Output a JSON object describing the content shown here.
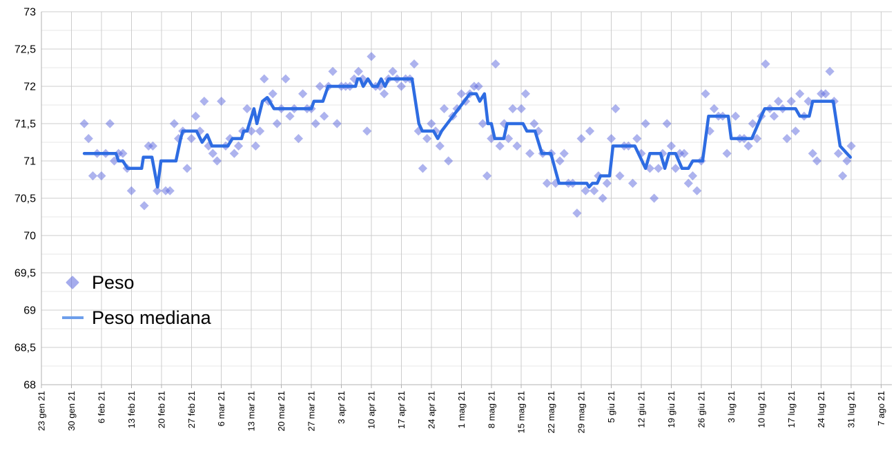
{
  "chart_data": {
    "type": "scatter",
    "title": "",
    "grid": true,
    "x_axis": {
      "tick_unit": "weeks",
      "days_per_tick": 7,
      "tick_labels": [
        "23 gen 21",
        "30 gen 21",
        "6 feb 21",
        "13 feb 21",
        "20 feb 21",
        "27 feb 21",
        "6 mar 21",
        "13 mar 21",
        "20 mar 21",
        "27 mar 21",
        "3 apr 21",
        "10 apr 21",
        "17 apr 21",
        "24 apr 21",
        "1 mag 21",
        "8 mag 21",
        "15 mag 21",
        "22 mag 21",
        "29 mag 21",
        "5 giu 21",
        "12 giu 21",
        "19 giu 21",
        "26 giu 21",
        "3 lug 21",
        "10 lug 21",
        "17 lug 21",
        "24 lug 21",
        "31 lug 21",
        "7 ago 21"
      ]
    },
    "y_axis": {
      "min": 68,
      "max": 73,
      "major_step": 0.5,
      "minor_step": 0.25,
      "tick_labels": [
        "73",
        "72,5",
        "72",
        "71,5",
        "71",
        "70,5",
        "70",
        "69,5",
        "69",
        "68,5",
        "68"
      ]
    },
    "legend": {
      "position": "inside-middle-left",
      "entries": [
        "Peso",
        "Peso mediana"
      ]
    },
    "series": [
      {
        "name": "Peso",
        "type": "scatter",
        "marker": "diamond",
        "color": "#5b68de",
        "opacity": 0.5,
        "x_unit": "days since 23 gen 21",
        "points": [
          [
            10,
            71.5
          ],
          [
            11,
            71.3
          ],
          [
            12,
            70.8
          ],
          [
            13,
            71.1
          ],
          [
            14,
            70.8
          ],
          [
            15,
            71.1
          ],
          [
            16,
            71.5
          ],
          [
            17,
            71.0
          ],
          [
            18,
            71.1
          ],
          [
            19,
            71.1
          ],
          [
            20,
            70.9
          ],
          [
            21,
            70.6
          ],
          [
            24,
            70.4
          ],
          [
            25,
            71.2
          ],
          [
            26,
            71.2
          ],
          [
            27,
            70.6
          ],
          [
            29,
            70.6
          ],
          [
            30,
            70.6
          ],
          [
            31,
            71.5
          ],
          [
            32,
            71.3
          ],
          [
            33,
            71.4
          ],
          [
            34,
            70.9
          ],
          [
            35,
            71.3
          ],
          [
            36,
            71.6
          ],
          [
            37,
            71.4
          ],
          [
            38,
            71.8
          ],
          [
            39,
            71.2
          ],
          [
            40,
            71.1
          ],
          [
            41,
            71.0
          ],
          [
            42,
            71.8
          ],
          [
            43,
            71.2
          ],
          [
            44,
            71.3
          ],
          [
            45,
            71.1
          ],
          [
            46,
            71.2
          ],
          [
            47,
            71.4
          ],
          [
            48,
            71.7
          ],
          [
            49,
            71.4
          ],
          [
            50,
            71.2
          ],
          [
            51,
            71.4
          ],
          [
            52,
            72.1
          ],
          [
            53,
            71.8
          ],
          [
            54,
            71.9
          ],
          [
            55,
            71.5
          ],
          [
            56,
            71.7
          ],
          [
            57,
            72.1
          ],
          [
            58,
            71.6
          ],
          [
            59,
            71.7
          ],
          [
            60,
            71.3
          ],
          [
            61,
            71.9
          ],
          [
            62,
            71.7
          ],
          [
            63,
            71.7
          ],
          [
            64,
            71.5
          ],
          [
            65,
            72.0
          ],
          [
            66,
            71.6
          ],
          [
            67,
            72.0
          ],
          [
            68,
            72.2
          ],
          [
            69,
            71.5
          ],
          [
            70,
            72.0
          ],
          [
            71,
            72.0
          ],
          [
            72,
            72.0
          ],
          [
            73,
            72.1
          ],
          [
            74,
            72.2
          ],
          [
            75,
            72.1
          ],
          [
            76,
            71.4
          ],
          [
            77,
            72.4
          ],
          [
            78,
            72.0
          ],
          [
            79,
            72.0
          ],
          [
            80,
            71.9
          ],
          [
            81,
            72.1
          ],
          [
            82,
            72.2
          ],
          [
            83,
            72.1
          ],
          [
            84,
            72.0
          ],
          [
            85,
            72.1
          ],
          [
            86,
            72.1
          ],
          [
            87,
            72.3
          ],
          [
            88,
            71.4
          ],
          [
            89,
            70.9
          ],
          [
            90,
            71.3
          ],
          [
            91,
            71.5
          ],
          [
            92,
            71.4
          ],
          [
            93,
            71.2
          ],
          [
            94,
            71.7
          ],
          [
            95,
            71.0
          ],
          [
            96,
            71.6
          ],
          [
            97,
            71.7
          ],
          [
            98,
            71.9
          ],
          [
            99,
            71.8
          ],
          [
            100,
            71.9
          ],
          [
            101,
            72.0
          ],
          [
            102,
            72.0
          ],
          [
            103,
            71.5
          ],
          [
            104,
            70.8
          ],
          [
            105,
            71.3
          ],
          [
            106,
            72.3
          ],
          [
            107,
            71.2
          ],
          [
            108,
            71.5
          ],
          [
            109,
            71.3
          ],
          [
            110,
            71.7
          ],
          [
            111,
            71.2
          ],
          [
            112,
            71.7
          ],
          [
            113,
            71.9
          ],
          [
            114,
            71.1
          ],
          [
            115,
            71.5
          ],
          [
            116,
            71.4
          ],
          [
            117,
            71.1
          ],
          [
            118,
            70.7
          ],
          [
            119,
            71.1
          ],
          [
            120,
            70.7
          ],
          [
            121,
            71.0
          ],
          [
            122,
            71.1
          ],
          [
            123,
            70.7
          ],
          [
            124,
            70.7
          ],
          [
            125,
            70.3
          ],
          [
            126,
            71.3
          ],
          [
            127,
            70.6
          ],
          [
            128,
            71.4
          ],
          [
            129,
            70.6
          ],
          [
            130,
            70.8
          ],
          [
            131,
            70.5
          ],
          [
            132,
            70.7
          ],
          [
            133,
            71.3
          ],
          [
            134,
            71.7
          ],
          [
            135,
            70.8
          ],
          [
            136,
            71.2
          ],
          [
            137,
            71.2
          ],
          [
            138,
            70.7
          ],
          [
            139,
            71.3
          ],
          [
            140,
            71.1
          ],
          [
            141,
            71.5
          ],
          [
            142,
            70.9
          ],
          [
            143,
            70.5
          ],
          [
            144,
            70.9
          ],
          [
            145,
            71.1
          ],
          [
            146,
            71.5
          ],
          [
            147,
            71.2
          ],
          [
            148,
            70.9
          ],
          [
            149,
            71.1
          ],
          [
            150,
            71.1
          ],
          [
            151,
            70.7
          ],
          [
            152,
            70.8
          ],
          [
            153,
            70.6
          ],
          [
            154,
            71.0
          ],
          [
            155,
            71.9
          ],
          [
            156,
            71.4
          ],
          [
            157,
            71.7
          ],
          [
            158,
            71.6
          ],
          [
            159,
            71.6
          ],
          [
            160,
            71.1
          ],
          [
            162,
            71.6
          ],
          [
            163,
            71.3
          ],
          [
            164,
            71.3
          ],
          [
            165,
            71.2
          ],
          [
            166,
            71.5
          ],
          [
            167,
            71.3
          ],
          [
            168,
            71.6
          ],
          [
            169,
            72.3
          ],
          [
            170,
            71.7
          ],
          [
            171,
            71.6
          ],
          [
            172,
            71.8
          ],
          [
            173,
            71.7
          ],
          [
            174,
            71.3
          ],
          [
            175,
            71.8
          ],
          [
            176,
            71.4
          ],
          [
            177,
            71.9
          ],
          [
            178,
            71.6
          ],
          [
            179,
            71.8
          ],
          [
            180,
            71.1
          ],
          [
            181,
            71.0
          ],
          [
            182,
            71.9
          ],
          [
            183,
            71.9
          ],
          [
            184,
            72.2
          ],
          [
            185,
            71.8
          ],
          [
            186,
            71.1
          ],
          [
            187,
            70.8
          ],
          [
            188,
            71.0
          ],
          [
            189,
            71.2
          ]
        ]
      },
      {
        "name": "Peso mediana",
        "type": "line",
        "color": "#2e6ce2",
        "width": 4.5,
        "x_unit": "days since 23 gen 21",
        "points": [
          [
            10,
            71.1
          ],
          [
            17.4,
            71.1
          ],
          [
            18,
            71.0
          ],
          [
            19,
            71.0
          ],
          [
            20.1,
            70.9
          ],
          [
            23.4,
            70.9
          ],
          [
            23.8,
            71.05
          ],
          [
            25.8,
            71.05
          ],
          [
            27.1,
            70.65
          ],
          [
            27.9,
            71.0
          ],
          [
            31.4,
            71.0
          ],
          [
            32.5,
            71.3
          ],
          [
            33,
            71.4
          ],
          [
            36.2,
            71.4
          ],
          [
            37.5,
            71.25
          ],
          [
            38.7,
            71.35
          ],
          [
            39.8,
            71.2
          ],
          [
            43.5,
            71.2
          ],
          [
            44.6,
            71.3
          ],
          [
            46.7,
            71.3
          ],
          [
            47.2,
            71.4
          ],
          [
            48,
            71.4
          ],
          [
            49.6,
            71.7
          ],
          [
            50.3,
            71.5
          ],
          [
            51.6,
            71.8
          ],
          [
            52.7,
            71.85
          ],
          [
            54.3,
            71.7
          ],
          [
            63,
            71.7
          ],
          [
            63.6,
            71.8
          ],
          [
            65.7,
            71.8
          ],
          [
            66.9,
            72.0
          ],
          [
            73.3,
            72.0
          ],
          [
            73.8,
            72.1
          ],
          [
            74.4,
            72.1
          ],
          [
            75.1,
            72.0
          ],
          [
            76.2,
            72.1
          ],
          [
            77.3,
            72.0
          ],
          [
            78.4,
            72.0
          ],
          [
            79.3,
            72.1
          ],
          [
            80.2,
            72.0
          ],
          [
            81,
            72.1
          ],
          [
            86.5,
            72.1
          ],
          [
            88.1,
            71.5
          ],
          [
            88.9,
            71.4
          ],
          [
            91.5,
            71.4
          ],
          [
            92.5,
            71.3
          ],
          [
            93.4,
            71.4
          ],
          [
            100,
            71.9
          ],
          [
            101.5,
            71.9
          ],
          [
            102.3,
            71.8
          ],
          [
            103.4,
            71.9
          ],
          [
            104.2,
            71.5
          ],
          [
            105,
            71.5
          ],
          [
            105.8,
            71.3
          ],
          [
            107.9,
            71.3
          ],
          [
            108.7,
            71.5
          ],
          [
            112.4,
            71.5
          ],
          [
            113.3,
            71.4
          ],
          [
            115.2,
            71.4
          ],
          [
            116.8,
            71.1
          ],
          [
            118.9,
            71.1
          ],
          [
            120.8,
            70.7
          ],
          [
            127.3,
            70.7
          ],
          [
            127.8,
            70.65
          ],
          [
            128.6,
            70.7
          ],
          [
            129.7,
            70.7
          ],
          [
            130.5,
            70.8
          ],
          [
            132.6,
            70.8
          ],
          [
            133.4,
            71.2
          ],
          [
            138.5,
            71.2
          ],
          [
            141,
            70.9
          ],
          [
            142,
            71.1
          ],
          [
            144.5,
            71.1
          ],
          [
            145.5,
            70.9
          ],
          [
            146.5,
            71.1
          ],
          [
            148,
            71.1
          ],
          [
            149.5,
            70.9
          ],
          [
            151,
            70.9
          ],
          [
            152,
            71.0
          ],
          [
            154.3,
            71.0
          ],
          [
            155.7,
            71.6
          ],
          [
            160.3,
            71.6
          ],
          [
            161,
            71.3
          ],
          [
            165.8,
            71.3
          ],
          [
            167.3,
            71.5
          ],
          [
            168,
            71.6
          ],
          [
            168.8,
            71.7
          ],
          [
            176,
            71.7
          ],
          [
            177,
            71.6
          ],
          [
            179.2,
            71.6
          ],
          [
            180,
            71.8
          ],
          [
            184.8,
            71.8
          ],
          [
            186.4,
            71.2
          ],
          [
            188.8,
            71.05
          ]
        ]
      }
    ]
  },
  "colors": {
    "background": "#ffffff",
    "grid_major": "#cccccc",
    "grid_minor": "#e7e7e7",
    "axis": "#b0b0b0",
    "label": "#000000",
    "legend_line": "#6d9eeb",
    "scatter_fill": "#5b68de",
    "median_line": "#2e6ce2"
  }
}
